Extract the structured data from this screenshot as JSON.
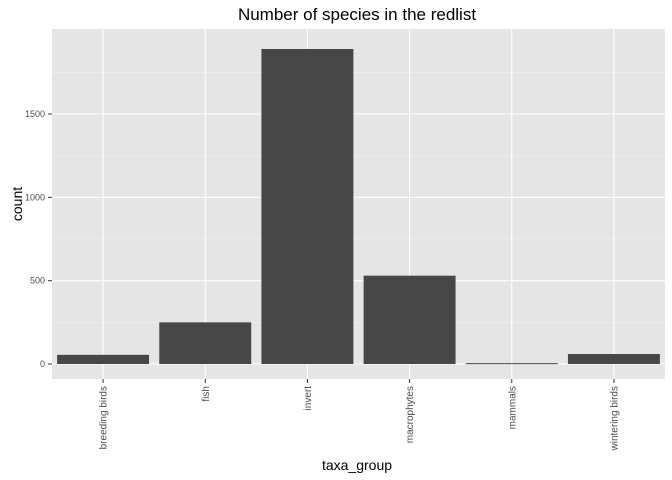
{
  "chart_data": {
    "type": "bar",
    "title": "Number of species in the redlist",
    "xlabel": "taxa_group",
    "ylabel": "count",
    "categories": [
      "breeding birds",
      "fish",
      "invert",
      "macrophytes",
      "mammals",
      "wintering birds"
    ],
    "values": [
      55,
      250,
      1890,
      530,
      5,
      60
    ],
    "ylim": [
      -90,
      2010
    ],
    "yticks": [
      0,
      500,
      1000,
      1500
    ],
    "ytick_labels": [
      "0",
      "500",
      "1000",
      "1500"
    ],
    "grid": true,
    "legend": "none",
    "colors": {
      "panel_background": "#e5e5e5",
      "grid_major": "#ffffff",
      "grid_minor": "#f2f2f2",
      "bar_fill": "#474747"
    }
  }
}
